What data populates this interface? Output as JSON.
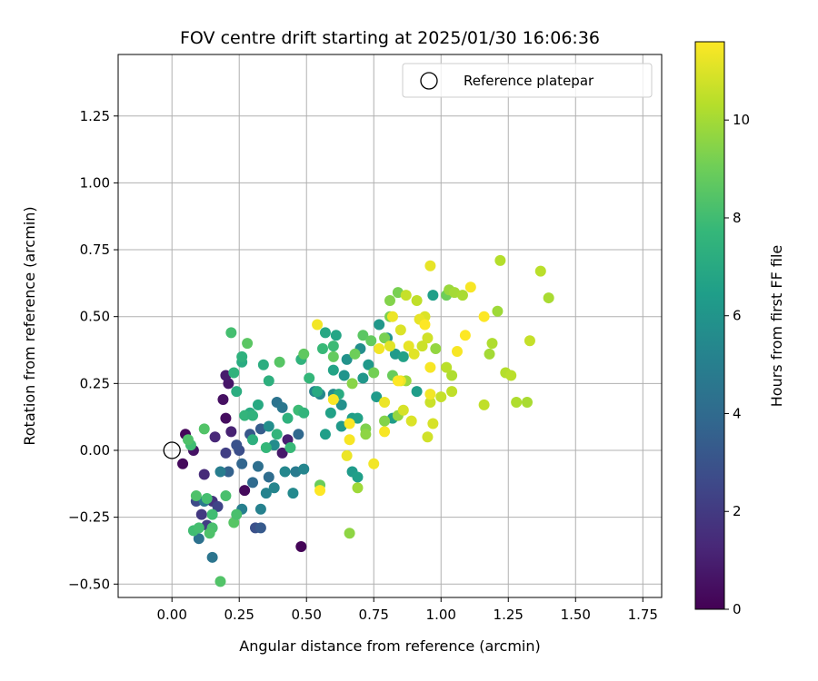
{
  "chart_data": {
    "type": "scatter",
    "title": "FOV centre drift starting at 2025/01/30 16:06:36",
    "xlabel": "Angular distance from reference (arcmin)",
    "ylabel": "Rotation from reference (arcmin)",
    "xlim": [
      -0.2,
      1.82
    ],
    "ylim": [
      -0.55,
      1.48
    ],
    "x_ticks": [
      "0.00",
      "0.25",
      "0.50",
      "0.75",
      "1.00",
      "1.25",
      "1.50",
      "1.75"
    ],
    "y_ticks": [
      "−0.50",
      "−0.25",
      "0.00",
      "0.25",
      "0.50",
      "0.75",
      "1.00",
      "1.25"
    ],
    "grid": true,
    "legend": {
      "position": "top-right",
      "label": "Reference platepar"
    },
    "reference_point": {
      "x": 0.0,
      "y": 0.0
    },
    "colorbar": {
      "label": "Hours from first FF file",
      "colormap": "viridis",
      "range": [
        0,
        11.6
      ],
      "ticks": [
        "0",
        "2",
        "4",
        "6",
        "8",
        "10"
      ]
    },
    "colormap_stops": [
      "#440154",
      "#482878",
      "#3e4989",
      "#31688e",
      "#26828e",
      "#1f9e89",
      "#35b779",
      "#6ece58",
      "#b5de2b",
      "#fde725"
    ],
    "points": [
      {
        "x": 0.05,
        "y": 0.06,
        "t": 0.2
      },
      {
        "x": 0.04,
        "y": -0.05,
        "t": 0.3
      },
      {
        "x": 0.08,
        "y": 0.0,
        "t": 0.6
      },
      {
        "x": 0.2,
        "y": 0.12,
        "t": 0.4
      },
      {
        "x": 0.19,
        "y": 0.19,
        "t": 0.5
      },
      {
        "x": 0.21,
        "y": 0.25,
        "t": 0.7
      },
      {
        "x": 0.2,
        "y": 0.28,
        "t": 0.9
      },
      {
        "x": 0.22,
        "y": 0.07,
        "t": 1.1
      },
      {
        "x": 0.16,
        "y": 0.05,
        "t": 1.3
      },
      {
        "x": 0.48,
        "y": -0.36,
        "t": 0.1
      },
      {
        "x": 0.27,
        "y": -0.15,
        "t": 0.3
      },
      {
        "x": 0.41,
        "y": -0.01,
        "t": 0.8
      },
      {
        "x": 0.43,
        "y": 0.04,
        "t": 1.0
      },
      {
        "x": 0.12,
        "y": -0.09,
        "t": 1.4
      },
      {
        "x": 0.15,
        "y": -0.19,
        "t": 1.7
      },
      {
        "x": 0.11,
        "y": -0.24,
        "t": 1.9
      },
      {
        "x": 0.13,
        "y": -0.28,
        "t": 2.1
      },
      {
        "x": 0.17,
        "y": -0.21,
        "t": 2.4
      },
      {
        "x": 0.09,
        "y": -0.19,
        "t": 2.6
      },
      {
        "x": 0.2,
        "y": -0.01,
        "t": 2.2
      },
      {
        "x": 0.25,
        "y": 0.0,
        "t": 2.8
      },
      {
        "x": 0.24,
        "y": 0.02,
        "t": 3.0
      },
      {
        "x": 0.29,
        "y": 0.06,
        "t": 3.2
      },
      {
        "x": 0.33,
        "y": 0.08,
        "t": 3.4
      },
      {
        "x": 0.31,
        "y": -0.29,
        "t": 2.9
      },
      {
        "x": 0.33,
        "y": -0.29,
        "t": 3.3
      },
      {
        "x": 0.21,
        "y": -0.08,
        "t": 3.6
      },
      {
        "x": 0.26,
        "y": -0.05,
        "t": 3.8
      },
      {
        "x": 0.3,
        "y": -0.12,
        "t": 4.0
      },
      {
        "x": 0.32,
        "y": -0.06,
        "t": 4.2
      },
      {
        "x": 0.36,
        "y": -0.1,
        "t": 4.1
      },
      {
        "x": 0.39,
        "y": 0.18,
        "t": 4.4
      },
      {
        "x": 0.41,
        "y": 0.16,
        "t": 4.6
      },
      {
        "x": 0.46,
        "y": -0.08,
        "t": 4.8
      },
      {
        "x": 0.47,
        "y": 0.06,
        "t": 3.9
      },
      {
        "x": 0.1,
        "y": -0.33,
        "t": 4.3
      },
      {
        "x": 0.15,
        "y": -0.4,
        "t": 4.5
      },
      {
        "x": 0.12,
        "y": -0.19,
        "t": 4.7
      },
      {
        "x": 0.18,
        "y": -0.08,
        "t": 4.9
      },
      {
        "x": 0.26,
        "y": -0.22,
        "t": 5.0
      },
      {
        "x": 0.33,
        "y": -0.22,
        "t": 5.1
      },
      {
        "x": 0.35,
        "y": -0.16,
        "t": 5.2
      },
      {
        "x": 0.38,
        "y": -0.14,
        "t": 5.3
      },
      {
        "x": 0.42,
        "y": -0.08,
        "t": 5.4
      },
      {
        "x": 0.45,
        "y": -0.16,
        "t": 5.5
      },
      {
        "x": 0.49,
        "y": -0.07,
        "t": 5.3
      },
      {
        "x": 0.38,
        "y": 0.02,
        "t": 5.6
      },
      {
        "x": 0.36,
        "y": 0.09,
        "t": 5.7
      },
      {
        "x": 0.53,
        "y": 0.22,
        "t": 5.2
      },
      {
        "x": 0.55,
        "y": 0.21,
        "t": 5.4
      },
      {
        "x": 0.6,
        "y": 0.21,
        "t": 5.6
      },
      {
        "x": 0.63,
        "y": 0.17,
        "t": 5.8
      },
      {
        "x": 0.64,
        "y": 0.28,
        "t": 6.0
      },
      {
        "x": 0.65,
        "y": 0.34,
        "t": 5.9
      },
      {
        "x": 0.71,
        "y": 0.27,
        "t": 6.1
      },
      {
        "x": 0.73,
        "y": 0.32,
        "t": 6.2
      },
      {
        "x": 0.7,
        "y": 0.38,
        "t": 5.7
      },
      {
        "x": 0.76,
        "y": 0.2,
        "t": 6.3
      },
      {
        "x": 0.67,
        "y": 0.12,
        "t": 6.4
      },
      {
        "x": 0.63,
        "y": 0.09,
        "t": 6.2
      },
      {
        "x": 0.57,
        "y": 0.06,
        "t": 6.5
      },
      {
        "x": 0.59,
        "y": 0.14,
        "t": 6.6
      },
      {
        "x": 0.67,
        "y": -0.08,
        "t": 6.3
      },
      {
        "x": 0.69,
        "y": -0.1,
        "t": 6.5
      },
      {
        "x": 0.82,
        "y": 0.12,
        "t": 6.4
      },
      {
        "x": 0.8,
        "y": 0.42,
        "t": 6.0
      },
      {
        "x": 0.77,
        "y": 0.47,
        "t": 6.1
      },
      {
        "x": 0.83,
        "y": 0.36,
        "t": 6.3
      },
      {
        "x": 0.86,
        "y": 0.35,
        "t": 6.6
      },
      {
        "x": 0.91,
        "y": 0.22,
        "t": 6.4
      },
      {
        "x": 0.97,
        "y": 0.58,
        "t": 6.5
      },
      {
        "x": 0.69,
        "y": 0.12,
        "t": 6.6
      },
      {
        "x": 0.6,
        "y": 0.3,
        "t": 6.7
      },
      {
        "x": 0.61,
        "y": 0.43,
        "t": 6.8
      },
      {
        "x": 0.57,
        "y": 0.44,
        "t": 6.9
      },
      {
        "x": 0.54,
        "y": 0.22,
        "t": 7.0
      },
      {
        "x": 0.62,
        "y": 0.21,
        "t": 7.1
      },
      {
        "x": 0.32,
        "y": 0.17,
        "t": 7.0
      },
      {
        "x": 0.29,
        "y": 0.14,
        "t": 7.1
      },
      {
        "x": 0.34,
        "y": 0.32,
        "t": 7.2
      },
      {
        "x": 0.36,
        "y": 0.26,
        "t": 7.3
      },
      {
        "x": 0.26,
        "y": 0.33,
        "t": 7.1
      },
      {
        "x": 0.26,
        "y": 0.35,
        "t": 7.4
      },
      {
        "x": 0.23,
        "y": 0.29,
        "t": 7.5
      },
      {
        "x": 0.24,
        "y": 0.22,
        "t": 7.2
      },
      {
        "x": 0.27,
        "y": 0.13,
        "t": 7.6
      },
      {
        "x": 0.3,
        "y": 0.13,
        "t": 7.5
      },
      {
        "x": 0.3,
        "y": 0.04,
        "t": 7.3
      },
      {
        "x": 0.35,
        "y": 0.01,
        "t": 7.7
      },
      {
        "x": 0.39,
        "y": 0.06,
        "t": 7.6
      },
      {
        "x": 0.43,
        "y": 0.12,
        "t": 7.4
      },
      {
        "x": 0.44,
        "y": 0.01,
        "t": 7.8
      },
      {
        "x": 0.47,
        "y": 0.15,
        "t": 7.9
      },
      {
        "x": 0.49,
        "y": 0.14,
        "t": 7.6
      },
      {
        "x": 0.48,
        "y": 0.34,
        "t": 7.5
      },
      {
        "x": 0.51,
        "y": 0.27,
        "t": 7.7
      },
      {
        "x": 0.56,
        "y": 0.38,
        "t": 7.8
      },
      {
        "x": 0.6,
        "y": 0.39,
        "t": 7.9
      },
      {
        "x": 0.08,
        "y": -0.3,
        "t": 8.0
      },
      {
        "x": 0.1,
        "y": -0.29,
        "t": 8.1
      },
      {
        "x": 0.15,
        "y": -0.29,
        "t": 8.2
      },
      {
        "x": 0.14,
        "y": -0.31,
        "t": 8.3
      },
      {
        "x": 0.15,
        "y": -0.24,
        "t": 8.0
      },
      {
        "x": 0.2,
        "y": -0.17,
        "t": 8.2
      },
      {
        "x": 0.18,
        "y": -0.49,
        "t": 8.4
      },
      {
        "x": 0.13,
        "y": -0.18,
        "t": 8.1
      },
      {
        "x": 0.09,
        "y": -0.17,
        "t": 8.3
      },
      {
        "x": 0.23,
        "y": -0.27,
        "t": 8.5
      },
      {
        "x": 0.24,
        "y": -0.24,
        "t": 8.2
      },
      {
        "x": 0.07,
        "y": 0.02,
        "t": 8.0
      },
      {
        "x": 0.06,
        "y": 0.04,
        "t": 8.3
      },
      {
        "x": 0.12,
        "y": 0.08,
        "t": 8.4
      },
      {
        "x": 0.22,
        "y": 0.44,
        "t": 8.1
      },
      {
        "x": 0.28,
        "y": 0.4,
        "t": 8.6
      },
      {
        "x": 0.4,
        "y": 0.33,
        "t": 8.5
      },
      {
        "x": 0.49,
        "y": 0.36,
        "t": 8.7
      },
      {
        "x": 0.6,
        "y": 0.35,
        "t": 8.8
      },
      {
        "x": 0.55,
        "y": -0.13,
        "t": 8.9
      },
      {
        "x": 0.71,
        "y": 0.43,
        "t": 8.6
      },
      {
        "x": 0.74,
        "y": 0.41,
        "t": 8.8
      },
      {
        "x": 0.68,
        "y": 0.36,
        "t": 9.0
      },
      {
        "x": 0.75,
        "y": 0.29,
        "t": 9.1
      },
      {
        "x": 0.82,
        "y": 0.28,
        "t": 8.9
      },
      {
        "x": 0.79,
        "y": 0.42,
        "t": 9.2
      },
      {
        "x": 0.81,
        "y": 0.5,
        "t": 9.3
      },
      {
        "x": 0.84,
        "y": 0.59,
        "t": 9.2
      },
      {
        "x": 0.81,
        "y": 0.56,
        "t": 9.4
      },
      {
        "x": 0.67,
        "y": 0.25,
        "t": 9.5
      },
      {
        "x": 0.72,
        "y": 0.08,
        "t": 9.3
      },
      {
        "x": 0.72,
        "y": 0.06,
        "t": 9.6
      },
      {
        "x": 0.79,
        "y": 0.11,
        "t": 9.4
      },
      {
        "x": 0.84,
        "y": 0.13,
        "t": 9.7
      },
      {
        "x": 0.87,
        "y": 0.26,
        "t": 9.8
      },
      {
        "x": 0.66,
        "y": -0.31,
        "t": 9.6
      },
      {
        "x": 0.69,
        "y": -0.14,
        "t": 9.9
      },
      {
        "x": 0.98,
        "y": 0.38,
        "t": 9.7
      },
      {
        "x": 1.02,
        "y": 0.58,
        "t": 9.0
      },
      {
        "x": 1.03,
        "y": 0.6,
        "t": 9.8
      },
      {
        "x": 1.05,
        "y": 0.59,
        "t": 10.0
      },
      {
        "x": 1.08,
        "y": 0.58,
        "t": 10.1
      },
      {
        "x": 1.21,
        "y": 0.52,
        "t": 9.9
      },
      {
        "x": 1.19,
        "y": 0.4,
        "t": 10.2
      },
      {
        "x": 1.18,
        "y": 0.36,
        "t": 10.0
      },
      {
        "x": 1.24,
        "y": 0.29,
        "t": 10.3
      },
      {
        "x": 1.26,
        "y": 0.28,
        "t": 10.4
      },
      {
        "x": 1.28,
        "y": 0.18,
        "t": 10.2
      },
      {
        "x": 1.32,
        "y": 0.18,
        "t": 10.1
      },
      {
        "x": 1.16,
        "y": 0.17,
        "t": 10.5
      },
      {
        "x": 1.22,
        "y": 0.71,
        "t": 10.3
      },
      {
        "x": 1.37,
        "y": 0.67,
        "t": 10.4
      },
      {
        "x": 1.4,
        "y": 0.57,
        "t": 10.1
      },
      {
        "x": 1.33,
        "y": 0.41,
        "t": 10.6
      },
      {
        "x": 1.04,
        "y": 0.28,
        "t": 10.2
      },
      {
        "x": 1.02,
        "y": 0.31,
        "t": 10.4
      },
      {
        "x": 1.04,
        "y": 0.22,
        "t": 10.5
      },
      {
        "x": 1.0,
        "y": 0.2,
        "t": 10.6
      },
      {
        "x": 0.93,
        "y": 0.39,
        "t": 10.7
      },
      {
        "x": 0.91,
        "y": 0.56,
        "t": 10.5
      },
      {
        "x": 0.87,
        "y": 0.58,
        "t": 10.6
      },
      {
        "x": 0.95,
        "y": 0.42,
        "t": 10.8
      },
      {
        "x": 0.96,
        "y": 0.18,
        "t": 10.7
      },
      {
        "x": 0.97,
        "y": 0.1,
        "t": 10.9
      },
      {
        "x": 0.95,
        "y": 0.05,
        "t": 10.8
      },
      {
        "x": 0.86,
        "y": 0.15,
        "t": 10.9
      },
      {
        "x": 0.85,
        "y": 0.45,
        "t": 11.0
      },
      {
        "x": 0.81,
        "y": 0.39,
        "t": 11.1
      },
      {
        "x": 0.94,
        "y": 0.5,
        "t": 11.0
      },
      {
        "x": 0.88,
        "y": 0.39,
        "t": 11.2
      },
      {
        "x": 0.9,
        "y": 0.36,
        "t": 11.1
      },
      {
        "x": 0.85,
        "y": 0.26,
        "t": 11.3
      },
      {
        "x": 0.92,
        "y": 0.49,
        "t": 11.2
      },
      {
        "x": 0.89,
        "y": 0.11,
        "t": 11.0
      },
      {
        "x": 0.77,
        "y": 0.38,
        "t": 11.4
      },
      {
        "x": 0.79,
        "y": 0.18,
        "t": 11.3
      },
      {
        "x": 0.79,
        "y": 0.07,
        "t": 11.5
      },
      {
        "x": 0.75,
        "y": -0.05,
        "t": 11.4
      },
      {
        "x": 0.66,
        "y": 0.04,
        "t": 11.5
      },
      {
        "x": 0.65,
        "y": -0.02,
        "t": 11.3
      },
      {
        "x": 0.55,
        "y": -0.15,
        "t": 11.6
      },
      {
        "x": 0.54,
        "y": 0.47,
        "t": 11.4
      },
      {
        "x": 0.6,
        "y": 0.19,
        "t": 11.5
      },
      {
        "x": 0.66,
        "y": 0.1,
        "t": 11.6
      },
      {
        "x": 0.82,
        "y": 0.5,
        "t": 11.3
      },
      {
        "x": 0.96,
        "y": 0.69,
        "t": 11.2
      },
      {
        "x": 0.96,
        "y": 0.31,
        "t": 11.5
      },
      {
        "x": 0.96,
        "y": 0.21,
        "t": 11.4
      },
      {
        "x": 0.94,
        "y": 0.47,
        "t": 11.6
      },
      {
        "x": 1.06,
        "y": 0.37,
        "t": 11.5
      },
      {
        "x": 1.09,
        "y": 0.43,
        "t": 11.6
      },
      {
        "x": 1.11,
        "y": 0.61,
        "t": 11.5
      },
      {
        "x": 1.16,
        "y": 0.5,
        "t": 11.6
      },
      {
        "x": 0.84,
        "y": 0.26,
        "t": 11.6
      }
    ]
  }
}
